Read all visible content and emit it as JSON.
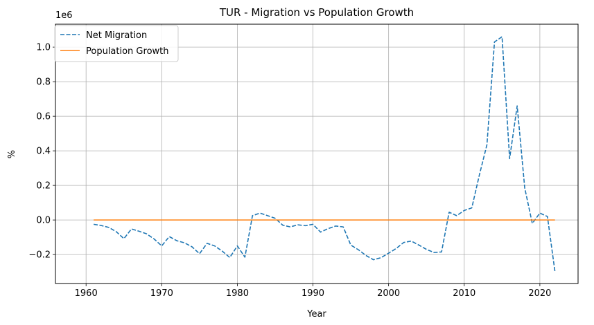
{
  "chart_data": {
    "type": "line",
    "title": "TUR - Migration vs Population Growth",
    "xlabel": "Year",
    "ylabel": "%",
    "y_offset_text": "1e6",
    "xlim": [
      1955.95,
      2025.05
    ],
    "ylim": [
      -0.3675,
      1.1325
    ],
    "y_scale_factor": 1000000,
    "x_ticks": [
      1960,
      1970,
      1980,
      1990,
      2000,
      2010,
      2020
    ],
    "y_ticks": [
      -0.2,
      0.0,
      0.2,
      0.4,
      0.6,
      0.8,
      1.0
    ],
    "y_tick_labels": [
      "−0.2",
      "0.0",
      "0.2",
      "0.4",
      "0.6",
      "0.8",
      "1.0"
    ],
    "grid": true,
    "legend_position": "top-left",
    "series": [
      {
        "name": "Net Migration",
        "style": "dashed",
        "color": "#1f77b4",
        "x": [
          1961,
          1962,
          1963,
          1964,
          1965,
          1966,
          1967,
          1968,
          1969,
          1970,
          1971,
          1972,
          1973,
          1974,
          1975,
          1976,
          1977,
          1978,
          1979,
          1980,
          1981,
          1982,
          1983,
          1984,
          1985,
          1986,
          1987,
          1988,
          1989,
          1990,
          1991,
          1992,
          1993,
          1994,
          1995,
          1996,
          1997,
          1998,
          1999,
          2000,
          2001,
          2002,
          2003,
          2004,
          2005,
          2006,
          2007,
          2008,
          2009,
          2010,
          2011,
          2012,
          2013,
          2014,
          2015,
          2016,
          2017,
          2018,
          2019,
          2020,
          2021,
          2022
        ],
        "values": [
          -0.025,
          -0.032,
          -0.043,
          -0.068,
          -0.108,
          -0.052,
          -0.065,
          -0.08,
          -0.11,
          -0.15,
          -0.096,
          -0.12,
          -0.132,
          -0.155,
          -0.195,
          -0.135,
          -0.15,
          -0.18,
          -0.217,
          -0.15,
          -0.215,
          0.025,
          0.04,
          0.025,
          0.01,
          -0.03,
          -0.04,
          -0.028,
          -0.033,
          -0.025,
          -0.07,
          -0.05,
          -0.035,
          -0.04,
          -0.145,
          -0.172,
          -0.205,
          -0.23,
          -0.218,
          -0.192,
          -0.165,
          -0.13,
          -0.122,
          -0.145,
          -0.17,
          -0.188,
          -0.185,
          0.045,
          0.025,
          0.055,
          0.07,
          0.26,
          0.435,
          1.03,
          1.06,
          0.355,
          0.66,
          0.185,
          -0.02,
          0.04,
          0.02,
          -0.3
        ]
      },
      {
        "name": "Population Growth",
        "style": "solid",
        "color": "#ff7f0e",
        "x": [
          1961,
          2022
        ],
        "values": [
          0.0,
          0.0
        ]
      }
    ]
  }
}
